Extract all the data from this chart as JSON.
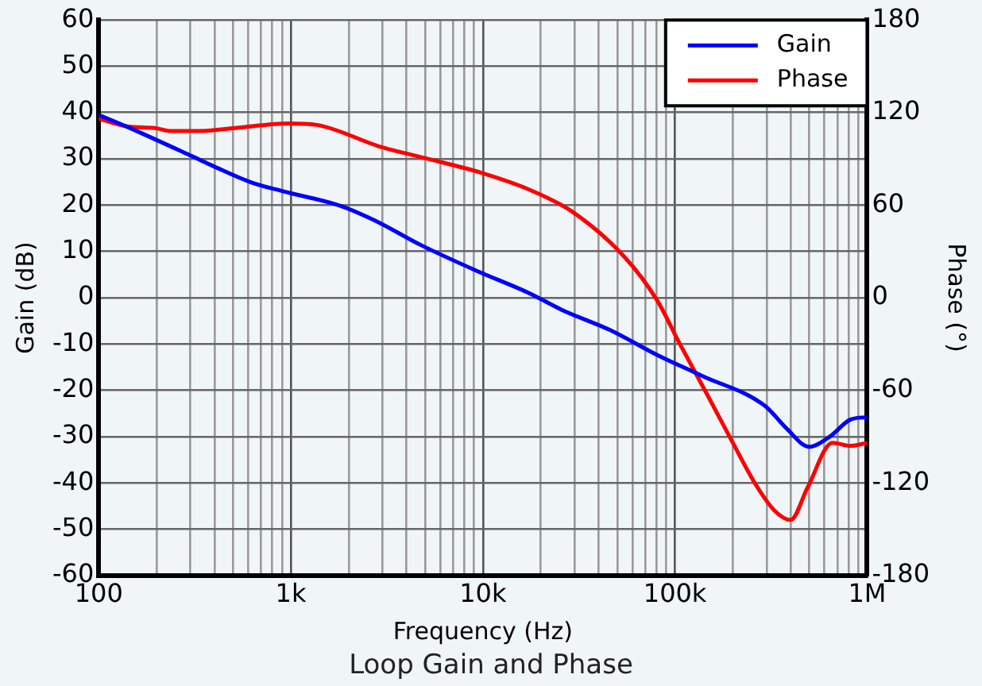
{
  "chart_data": {
    "type": "line",
    "title": "Loop Gain and Phase",
    "xlabel": "Frequency (Hz)",
    "ylabel": "Gain (dB)",
    "y2label": "Phase (°)",
    "log": "x",
    "grid": true,
    "legend": "top right",
    "marker": "none",
    "line_style": "solid",
    "xlim": [
      100,
      1000000
    ],
    "xticks": [
      100,
      {
        "value": 200,
        "label": null
      },
      {
        "value": 300,
        "label": null
      },
      {
        "value": 400,
        "label": null
      },
      {
        "value": 500,
        "label": null
      },
      {
        "value": 600,
        "label": null
      },
      {
        "value": 700,
        "label": null
      },
      {
        "value": 800,
        "label": null
      },
      {
        "value": 900,
        "label": null
      },
      {
        "value": 1000,
        "label": "1k"
      },
      {
        "value": 2000,
        "label": null
      },
      {
        "value": 3000,
        "label": null
      },
      {
        "value": 4000,
        "label": null
      },
      {
        "value": 5000,
        "label": null
      },
      {
        "value": 6000,
        "label": null
      },
      {
        "value": 7000,
        "label": null
      },
      {
        "value": 8000,
        "label": null
      },
      {
        "value": 9000,
        "label": null
      },
      {
        "value": 10000,
        "label": "10k"
      },
      {
        "value": 20000,
        "label": null
      },
      {
        "value": 30000,
        "label": null
      },
      {
        "value": 40000,
        "label": null
      },
      {
        "value": 50000,
        "label": null
      },
      {
        "value": 60000,
        "label": null
      },
      {
        "value": 70000,
        "label": null
      },
      {
        "value": 80000,
        "label": null
      },
      {
        "value": 90000,
        "label": null
      },
      {
        "value": 100000,
        "label": "100k"
      },
      {
        "value": 200000,
        "label": null
      },
      {
        "value": 300000,
        "label": null
      },
      {
        "value": 400000,
        "label": null
      },
      {
        "value": 500000,
        "label": null
      },
      {
        "value": 600000,
        "label": null
      },
      {
        "value": 700000,
        "label": null
      },
      {
        "value": 800000,
        "label": null
      },
      {
        "value": 900000,
        "label": null
      },
      {
        "value": 1000000,
        "label": "1M"
      }
    ],
    "ylim": [
      -60,
      60
    ],
    "yticks": [
      -60,
      -50,
      -40,
      -30,
      -20,
      -10,
      0,
      10,
      20,
      30,
      40,
      50,
      60
    ],
    "y2lim": [
      -180,
      180
    ],
    "y2ticks": [
      -180,
      -120,
      -60,
      0,
      60,
      120,
      180
    ],
    "series": [
      {
        "name": "Gain",
        "color": "#0000ff",
        "x": [
          100,
          141,
          305,
          392,
          624,
          910,
          1830,
          2700,
          4800,
          9300,
          17400,
          25700,
          46000,
          81000,
          137000,
          295000,
          380000,
          500000,
          640000,
          820000,
          1000000
        ],
        "values": [
          39.5,
          36.9,
          30.6,
          28.5,
          24.9,
          23,
          19.8,
          16.8,
          11.3,
          5.8,
          1.0,
          -2.6,
          -7,
          -12.4,
          -16.8,
          -23.4,
          -28.2,
          -32.2,
          -30,
          -26.3,
          -25.8
        ]
      },
      {
        "name": "Phase",
        "color": "#ff0000",
        "axis": "y2",
        "x": [
          100,
          141,
          196,
          238,
          324,
          515,
          970,
          1370,
          2900,
          5200,
          9800,
          17500,
          29000,
          55000,
          81000,
          105000,
          146000,
          200000,
          260000,
          330000,
          400000,
          490000,
          660000,
          820000,
          1000000
        ],
        "values": [
          116,
          111,
          110,
          108,
          108,
          110,
          113,
          112,
          98,
          90,
          81,
          70,
          56,
          26,
          -2,
          -29,
          -62,
          -94,
          -120,
          -138,
          -144,
          -123,
          -94,
          -96,
          -94
        ]
      }
    ]
  }
}
